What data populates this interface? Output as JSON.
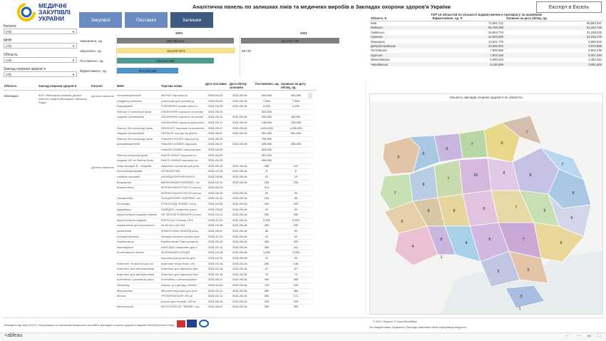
{
  "logo": {
    "line1": "МЕДИЧНІ",
    "line2": "ЗАКУПІВЛІ",
    "line3": "УКРАЇНИ"
  },
  "title": "Аналітична панель по залишках ліків та медичних виробів в Закладах охорони здоров'я України",
  "export_label": "Експорт в Ексель",
  "tabs": [
    {
      "label": "Закупівлі"
    },
    {
      "label": "Поставки"
    },
    {
      "label": "Залишки"
    }
  ],
  "filters": [
    {
      "label": "Каталог",
      "value": "(All)"
    },
    {
      "label": "МНН",
      "value": "(All)"
    },
    {
      "label": "Область",
      "value": "(All)"
    },
    {
      "label": "Заклад охорони здоров`я",
      "value": "(All)"
    }
  ],
  "bars": {
    "years": [
      "2020",
      "2021"
    ],
    "rows": [
      {
        "label": "Замовлено, од.",
        "v2020": "585,958,644",
        "v2021": "424,821,720"
      },
      {
        "label": "Закуплено, од.",
        "v2020": "514,047,871",
        "v2021": "58,787"
      },
      {
        "label": "Поставлено, од.",
        "v2020": "429,212,488",
        "v2021": ""
      },
      {
        "label": "Відвантажено, од.",
        "v2020": "304,226,086",
        "v2021": ""
      }
    ]
  },
  "top10": {
    "title": "TOP 10 областей по кількості відвантаженого препарату за напрямом",
    "headers": [
      "Область",
      "Відвантажено, од.",
      "Залишок на дату обліку, од."
    ],
    "rows": [
      [
        "Київ",
        "71,962,722",
        "65,993,367"
      ],
      [
        "Київська",
        "52,755,398",
        "51,242,728"
      ],
      [
        "Львівська",
        "25,903,776",
        "21,238,325"
      ],
      [
        "Сумська",
        "22,904,300",
        "22,233,176"
      ],
      [
        "Вінницька",
        "13,521,775",
        "9,950,933"
      ],
      [
        "Дніпропетровська",
        "10,659,462",
        "9,573,965"
      ],
      [
        "Полтавська",
        "7,900,696",
        "6,893,239"
      ],
      [
        "Одеська",
        "7,603,106",
        "5,407,494"
      ],
      [
        "Миколаївська",
        "5,380,419",
        "4,362,322"
      ],
      [
        "Чернігівська",
        "5,130,269",
        "3,991,600"
      ]
    ]
  },
  "main_table": {
    "headers": [
      "Область",
      "Заклад охорони здоров`я",
      "Каталог",
      "МНН",
      "Торгова назва",
      "Дата поставки",
      "Дата обліку залишків",
      "Поставлено, од.",
      "Залишок на дату обліку, од."
    ],
    "region": "Вінницька",
    "facility": "КНП «Вінницька обласна дитяча клінічна лікарня Вінницької обласної Ради»",
    "catalogs": [
      "Дитяча онкологія",
      "Дитяча онкологія"
    ],
    "rows": [
      [
        "Антигемофілічний",
        "ІМУНАТ порошок та",
        "2020-04-03",
        "2021-06-16",
        "340,500",
        "340,500"
      ],
      [
        "(людини) комплекс",
        "розчинник для розчину д",
        "2020-04-23",
        "2021-06-16",
        "7,500",
        "7,500"
      ],
      [
        "Емiцизумаб",
        "ГЕМЛІБРА® розчин для ін'є",
        "2021-02-25",
        "2021-06-16",
        "4,200",
        "4,200"
      ],
      [
        "Фактор IX коагуляції крові",
        "АЛЬФАНІНЕ порошок та розчин",
        "2021-06-25",
        "",
        "324,000",
        ""
      ],
      [
        "людини (плазмовий)",
        "АЛЬФАНІНЕ порошок та розчин",
        "2021-05-11",
        "2021-06-16",
        "252,000",
        "86,000"
      ],
      [
        "",
        "АЛЬФАНІНЕ порошок для розчин",
        "2021-05-17",
        "2021-06-16",
        "138,000",
        "138,000"
      ],
      [
        "Фактор VIII коагуляції крові",
        "ЕМОКЛОТ порошок та розчинник",
        "2021-05-17",
        "2021-06-16",
        "1,641,000",
        "1,600,000"
      ],
      [
        "людини (плазмовий)",
        "ОКТАНАТ пор д/р-ну д/ін'єк",
        "2021-06-07",
        "2021-06-16",
        "351,000",
        "351,000"
      ],
      [
        "Фактор VIII коагуляції крові",
        "НовоЕйт 500 МО порошок д",
        "2021-06-29",
        "",
        "794,500",
        ""
      ],
      [
        "(рекомбінантний)",
        "НовоЕйт 1000МО порошок",
        "2021-06-07",
        "2021-06-16",
        "435,000",
        "435,000"
      ],
      [
        "",
        "НовоЕйт 500МО порошок для",
        "2021-06-29",
        "",
        "408,000",
        ""
      ],
      [
        "Фактор коагуляції крові",
        "ВІІАТЕ 500МО порошок та",
        "2021-06-29",
        "",
        "357,000",
        ""
      ],
      [
        "людини VIII та Фактор Віллі",
        "ВІІАТЕ 1000МО порошок та",
        "2021-06-29",
        "",
        "408,000",
        ""
      ],
      [
        "Анфотерицин В - ліпідний",
        "Амфолип суспензія для розч",
        "2021-05-19",
        "2021-06-16",
        "286",
        "247"
      ],
      [
        "Антитимоцитарний",
        "АТГАМ/АТГАМ",
        "2021-03-16",
        "2021-06-16",
        "5",
        "5"
      ],
      [
        "глобулін кінський",
        "(ІНЧИЦИТАРНИЙ ІМУНО",
        "2021-05-04",
        "2021-06-16",
        "10",
        "10"
      ],
      [
        "Вінкристин",
        "ВАНКОМІЦИН-ФАРМЕКС ліо",
        "2021-02-11",
        "2021-06-16",
        "230",
        "230"
      ],
      [
        "Вориконазол",
        "ВОРИКОНАЗОЛ ВІСТА порош",
        "2021-06-29",
        "",
        "311",
        ""
      ],
      [
        "",
        "ВОРИКОНАЗОЛ ВІСТА порош",
        "2021-06-25",
        "2021-06-16",
        "20",
        "20"
      ],
      [
        "Ганцикловір",
        "ГАНЦИКЛОВІР-ФАРМЕКС ліо",
        "2020-12-23",
        "2021-06-16",
        "100",
        "65"
      ],
      [
        "Етопозид",
        "ЕТОПОЗИД \"ЕБЕВЕ\" конц",
        "2021-04-05",
        "2021-06-16",
        "320",
        "293"
      ],
      [
        "Ідарубіцин",
        "ЗАВЕДОС ліофілізат для п",
        "2021-03-02",
        "2021-06-16",
        "20",
        "20"
      ],
      [
        "Імуноглобулін людини нормал",
        "НЕ ПЕНТАГЛОБЕКАТІН розчи",
        "2021-02-11",
        "2021-06-16",
        "250",
        "250"
      ],
      [
        "Імуноглобулін людини",
        "ВІЛЕНІ ірл з біосер 10%",
        "2020-12-23",
        "2021-06-16",
        "2,500",
        "2,500"
      ],
      [
        "нормальний для внутрішньо",
        "на 50 мл у фл №1",
        "2021-03-18",
        "2021-06-16",
        "250",
        "250"
      ],
      [
        "Іринотекан",
        "ІРИНОТЕКАН АККОРД конц",
        "2021-06-07",
        "2021-06-16",
        "50",
        "50"
      ],
      [
        "Кальцію фолінат",
        "Кальцію фолінат, розчин для",
        "2020-12-23",
        "2021-06-16",
        "20",
        "20"
      ],
      [
        "Карбоплатин",
        "Карбоплатин-Тева концентр",
        "2021-05-14",
        "2021-06-16",
        "300",
        "300"
      ],
      [
        "Каспофунгін",
        "КАНСІДАЗ ліофілізат для п",
        "2021-02-11",
        "2021-06-16",
        "350",
        "311"
      ],
      [
        "Колістиметат натрію",
        "КОЛОМІЦИН МГКЦІЙ",
        "2021-02-18",
        "2021-06-16",
        "1,000",
        "1,000"
      ],
      [
        "",
        "порошок для розчину для",
        "2021-02-11",
        "2021-06-16",
        "20",
        "20"
      ],
      [
        "Комплект Тотальнісі для по",
        "Комплект Інтра Атап LXN",
        "2021-02-16",
        "2021-06-16",
        "150",
        "146"
      ],
      [
        "Комплект для автоматизова",
        "Комплект для афереза Ами",
        "2021-02-16",
        "2021-06-16",
        "67",
        "67"
      ],
      [
        "Комплект для автоматизова",
        "Комплект для афереза Ами",
        "2021-02-16",
        "2021-06-16",
        "73",
        "73"
      ],
      [
        "Контейнер з розчином для к",
        "Контейнер з антикоагулянт",
        "2021-05-17",
        "2021-06-16",
        "300",
        "293"
      ],
      [
        "Лінезолід",
        "Зивокс, д-н д/інфуз, 2мг/мл",
        "2020-12-23",
        "2021-06-16",
        "743",
        "429"
      ],
      [
        "Меропенем",
        "Меропен порошок для розч",
        "2021-02-11",
        "2021-06-16",
        "460",
        "460"
      ],
      [
        "Месна",
        "УРОМІТЕКСАН® 400 мг",
        "2021-02-11",
        "2021-06-16",
        "300",
        "171"
      ],
      [
        "",
        "розчин для ін'єкцій, 100 мг",
        "2021-06-14",
        "2021-06-16",
        "225",
        "225"
      ],
      [
        "Метотрексат",
        "МЕТОТРЕКСАТ \"ЕБЕВЕ\" кон",
        "2021-06-07",
        "2021-06-16",
        "300",
        "300"
      ]
    ]
  },
  "map": {
    "title": "Кількість закладів охорони здоров`я по областях",
    "labels": [
      "5",
      "6",
      "6",
      "7",
      "6",
      "7",
      "7",
      "8",
      "7",
      "15",
      "6",
      "8",
      "7",
      "8",
      "6",
      "6",
      "8",
      "6",
      "7",
      "5",
      "6",
      "4",
      "8",
      "4",
      "6",
      "7",
      "6",
      "5",
      "5",
      "3",
      "1",
      "1"
    ],
    "attribution": "© 2021 Mapbox © OpenStreetMap",
    "note": "Всі бюджетовані Лікувальні Заклади фіксовані облік інформація ведуться"
  },
  "footer": {
    "note": "Захищено від змін (2021). Інформація по залишкам лікарських засобів в закладах охорони здоров'я надана Міністерством Охорони Здоров'я України",
    "tableau": "+ableau"
  },
  "colors": {
    "tab_active": "#3d5a80",
    "tab": "#5b7ba6",
    "bar_grey": "#7f7f7f",
    "bar_yellow": "#f5e08e",
    "bar_teal": "#4f9a8e",
    "bar_blue": "#4f94c9"
  }
}
